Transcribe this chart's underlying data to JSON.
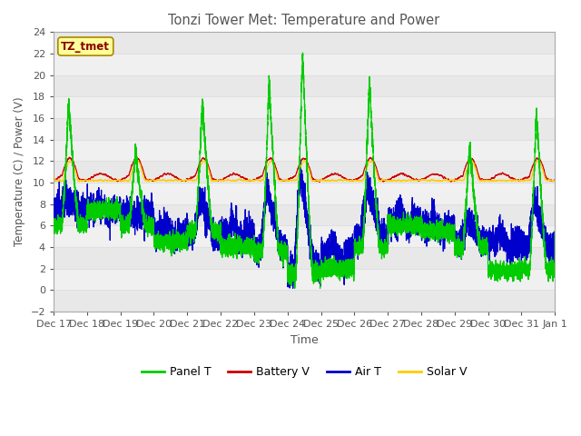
{
  "title": "Tonzi Tower Met: Temperature and Power",
  "xlabel": "Time",
  "ylabel": "Temperature (C) / Power (V)",
  "ylim": [
    -2,
    24
  ],
  "yticks": [
    -2,
    0,
    2,
    4,
    6,
    8,
    10,
    12,
    14,
    16,
    18,
    20,
    22,
    24
  ],
  "x_labels": [
    "Dec 17",
    "Dec 18",
    "Dec 19",
    "Dec 20",
    "Dec 21",
    "Dec 22",
    "Dec 23",
    "Dec 24",
    "Dec 25",
    "Dec 26",
    "Dec 27",
    "Dec 28",
    "Dec 29",
    "Dec 30",
    "Dec 31",
    "Jan 1"
  ],
  "tz_label": "TZ_tmet",
  "legend": [
    "Panel T",
    "Battery V",
    "Air T",
    "Solar V"
  ],
  "legend_colors": [
    "#00cc00",
    "#cc0000",
    "#0000cc",
    "#ffcc00"
  ],
  "panel_spikes": [
    17.5,
    0,
    13,
    0,
    17.5,
    0,
    19.7,
    22.2,
    0,
    19.5,
    0,
    0,
    13.5,
    0,
    16.8,
    0
  ],
  "panel_night_min": [
    6.0,
    7.5,
    6.0,
    4.5,
    5.5,
    4.0,
    3.5,
    1.5,
    2.0,
    4.0,
    6.0,
    5.5,
    4.0,
    1.8,
    2.0,
    5.5
  ],
  "air_night_min": [
    7.5,
    7.5,
    7.0,
    5.5,
    5.0,
    5.5,
    4.0,
    2.0,
    3.5,
    5.0,
    6.5,
    6.0,
    4.5,
    4.5,
    4.0,
    6.0
  ],
  "batt_base": 10.5,
  "solar_base": 10.2,
  "background_color": "#ffffff",
  "grid_color": "#e0e0e0"
}
